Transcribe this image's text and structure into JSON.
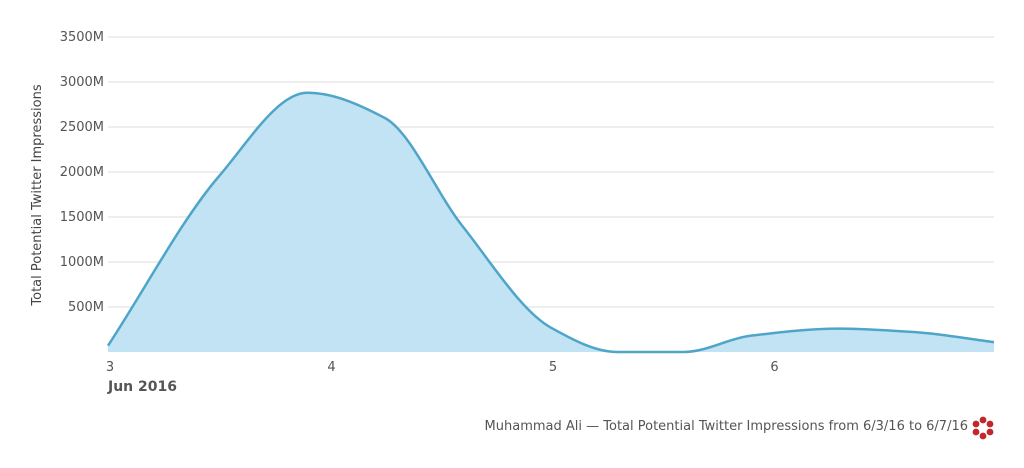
{
  "chart_data": {
    "type": "area",
    "title": "",
    "ylabel": "Total Potential Twitter Impressions",
    "xlabel": "",
    "x_period_label": "Jun 2016",
    "x_ticks": [
      {
        "x": 3,
        "label": "3"
      },
      {
        "x": 4,
        "label": "4"
      },
      {
        "x": 5,
        "label": "5"
      },
      {
        "x": 6,
        "label": "6"
      }
    ],
    "y_ticks": [
      {
        "value": 500,
        "label": "500M"
      },
      {
        "value": 1000,
        "label": "1000M"
      },
      {
        "value": 1500,
        "label": "1500M"
      },
      {
        "value": 2000,
        "label": "2000M"
      },
      {
        "value": 2500,
        "label": "2500M"
      },
      {
        "value": 3000,
        "label": "3000M"
      },
      {
        "value": 3500,
        "label": "3500M"
      }
    ],
    "xlim": [
      3,
      7
    ],
    "ylim": [
      0,
      3500
    ],
    "grid": true,
    "series": [
      {
        "x": [
          3,
          3.5,
          3.9,
          4.25,
          4.6,
          5,
          5.3,
          5.6,
          5.9,
          6.3,
          6.65,
          7
        ],
        "values": [
          70,
          1950,
          2880,
          2600,
          1400,
          270,
          0,
          0,
          180,
          260,
          220,
          110
        ]
      }
    ],
    "colors": {
      "line": "#4fa5c8",
      "fill": "#c1e3f3",
      "grid": "#dddddd"
    }
  },
  "footer": {
    "caption": "Muhammad Ali — Total Potential Twitter Impressions from 6/3/16 to 6/7/16",
    "brand_icon": "flower-logo-icon"
  }
}
